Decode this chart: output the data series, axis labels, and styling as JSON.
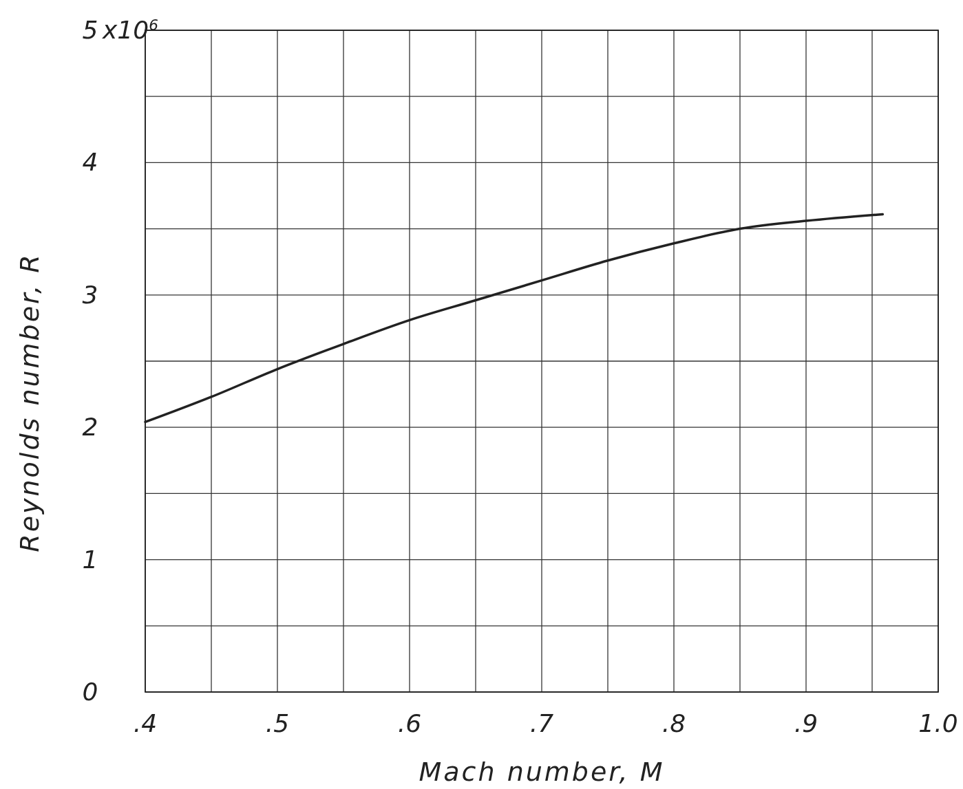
{
  "chart_data": {
    "type": "line",
    "xlabel": "Mach number, M",
    "ylabel": "Reynolds number, R",
    "x": [
      0.4,
      0.45,
      0.5,
      0.55,
      0.6,
      0.65,
      0.7,
      0.75,
      0.8,
      0.85,
      0.9,
      0.958
    ],
    "series": [
      {
        "color": "#222222",
        "values": [
          2.04,
          2.23,
          2.44,
          2.63,
          2.81,
          2.96,
          3.11,
          3.26,
          3.39,
          3.5,
          3.56,
          3.61
        ]
      }
    ],
    "xlim": [
      0.4,
      1.0
    ],
    "xticks": [
      {
        "value": 0.4,
        "label": ".4"
      },
      {
        "value": 0.45,
        "label": null
      },
      {
        "value": 0.5,
        "label": ".5"
      },
      {
        "value": 0.55,
        "label": null
      },
      {
        "value": 0.6,
        "label": ".6"
      },
      {
        "value": 0.65,
        "label": null
      },
      {
        "value": 0.7,
        "label": ".7"
      },
      {
        "value": 0.75,
        "label": null
      },
      {
        "value": 0.8,
        "label": ".8"
      },
      {
        "value": 0.85,
        "label": null
      },
      {
        "value": 0.9,
        "label": ".9"
      },
      {
        "value": 0.95,
        "label": null
      },
      {
        "value": 1.0,
        "label": "1.0"
      }
    ],
    "ylim": [
      0,
      5
    ],
    "yticks": [
      0,
      {
        "value": 0.5,
        "label": null
      },
      1,
      {
        "value": 1.5,
        "label": null
      },
      2,
      {
        "value": 2.5,
        "label": null
      },
      3,
      {
        "value": 3.5,
        "label": null
      },
      4,
      {
        "value": 4.5,
        "label": null
      },
      5
    ],
    "annotations": [
      "x10$^{6}$"
    ],
    "grid": true,
    "marker": "none",
    "line_style": "solid"
  }
}
